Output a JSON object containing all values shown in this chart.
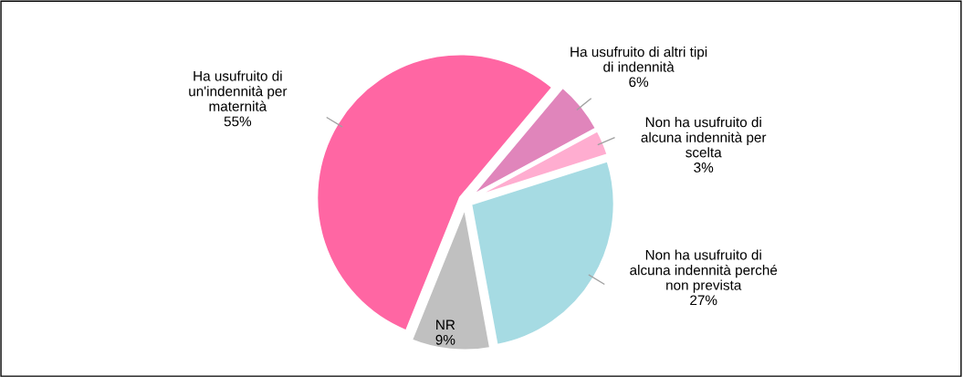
{
  "chart_data": {
    "type": "pie",
    "categories": [
      "Ha usufruito di altri tipi\ndi indennità",
      "Non ha usufruito di\nalcuna indennità per\nscelta",
      "Non ha usufruito di\nalcuna indennità perché\nnon prevista",
      "NR",
      "Ha usufruito di\nun'indennità per\nmaternità"
    ],
    "values": [
      6,
      3,
      27,
      9,
      55
    ],
    "value_labels": [
      "6%",
      "3%",
      "27%",
      "9%",
      "55%"
    ],
    "colors": [
      "#e085bb",
      "#ffadd0",
      "#a6dbe3",
      "#c0c0c0",
      "#ff66a3"
    ],
    "legend": false
  }
}
